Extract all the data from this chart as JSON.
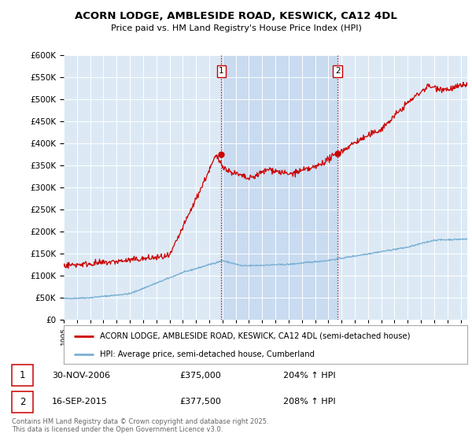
{
  "title": "ACORN LODGE, AMBLESIDE ROAD, KESWICK, CA12 4DL",
  "subtitle": "Price paid vs. HM Land Registry's House Price Index (HPI)",
  "bg_color": "#dce9f5",
  "highlight_color": "#c8dbf0",
  "red_color": "#cc0000",
  "blue_color": "#7ab0d4",
  "ylim": [
    0,
    600000
  ],
  "yticks": [
    0,
    50000,
    100000,
    150000,
    200000,
    250000,
    300000,
    350000,
    400000,
    450000,
    500000,
    550000,
    600000
  ],
  "annotation1": {
    "label": "1",
    "date": "30-NOV-2006",
    "price": 375000,
    "pct": "204% ↑ HPI"
  },
  "annotation2": {
    "label": "2",
    "date": "16-SEP-2015",
    "price": 377500,
    "pct": "208% ↑ HPI"
  },
  "legend_line1": "ACORN LODGE, AMBLESIDE ROAD, KESWICK, CA12 4DL (semi-detached house)",
  "legend_line2": "HPI: Average price, semi-detached house, Cumberland",
  "footer": "Contains HM Land Registry data © Crown copyright and database right 2025.\nThis data is licensed under the Open Government Licence v3.0.",
  "sale1_x": 2006.92,
  "sale2_x": 2015.71,
  "sale1_y": 375000,
  "sale2_y": 377500,
  "xlim": [
    1995.0,
    2025.5
  ]
}
